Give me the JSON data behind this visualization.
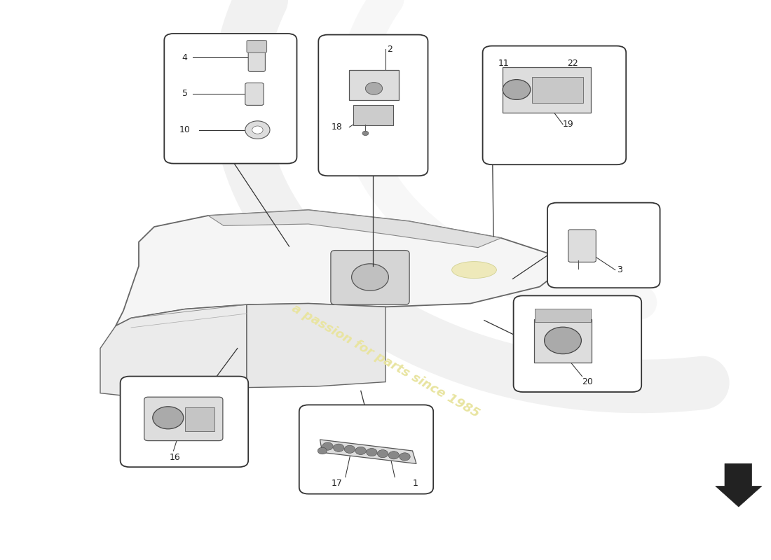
{
  "bg_color": "#ffffff",
  "box_edge": "#333333",
  "line_color": "#333333",
  "part_color": "#dddddd",
  "watermark_color": "#e8e4a0",
  "watermark_text": "a passion for parts since 1985",
  "figsize": [
    11.0,
    8.0
  ],
  "dpi": 100
}
